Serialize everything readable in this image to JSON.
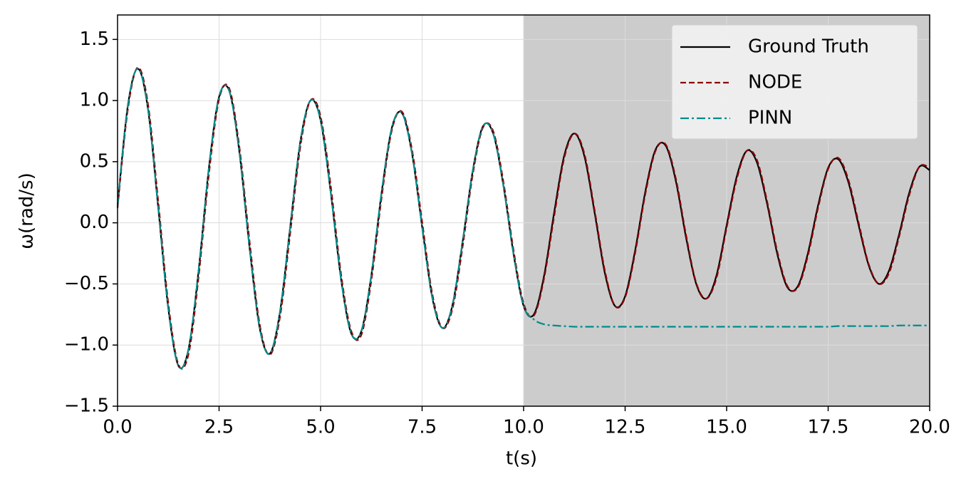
{
  "chart_data": {
    "type": "line",
    "xlabel": "t(s)",
    "ylabel": "ω(rad/s)",
    "xlim": [
      0,
      20
    ],
    "ylim": [
      -1.5,
      1.7
    ],
    "xticks": [
      {
        "value": 0,
        "label": "0.0"
      },
      2.5,
      {
        "value": 5,
        "label": "5.0"
      },
      7.5,
      {
        "value": 10,
        "label": "10.0"
      },
      12.5,
      {
        "value": 15,
        "label": "15.0"
      },
      17.5,
      {
        "value": 20,
        "label": "20.0"
      }
    ],
    "yticks": [
      {
        "value": -1.5,
        "label": "−1.5"
      },
      {
        "value": -1,
        "label": "−1.0"
      },
      {
        "value": -0.5,
        "label": "−0.5"
      },
      {
        "value": 0,
        "label": "0.0"
      },
      0.5,
      {
        "value": 1,
        "label": "1.0"
      },
      1.5
    ],
    "grid": true,
    "legend": "upper right",
    "shaded_xrange": [
      10,
      20
    ],
    "x": [
      0,
      0.25,
      0.5,
      0.75,
      1,
      1.25,
      1.5,
      1.75,
      2,
      2.25,
      2.5,
      2.75,
      3,
      3.25,
      3.5,
      3.75,
      4,
      4.25,
      4.5,
      4.75,
      5,
      5.25,
      5.5,
      5.75,
      6,
      6.25,
      6.5,
      6.75,
      7,
      7.25,
      7.5,
      7.75,
      8,
      8.25,
      8.5,
      8.75,
      9,
      9.25,
      9.5,
      9.75,
      10,
      10.25,
      10.5,
      10.75,
      11,
      11.25,
      11.5,
      11.75,
      12,
      12.25,
      12.5,
      12.75,
      13,
      13.25,
      13.5,
      13.75,
      14,
      14.25,
      14.5,
      14.75,
      15,
      15.25,
      15.5,
      15.75,
      16,
      16.25,
      16.5,
      16.75,
      17,
      17.25,
      17.5,
      17.75,
      18,
      18.25,
      18.5,
      18.75,
      19,
      19.25,
      19.5,
      19.75,
      20
    ],
    "series": [
      {
        "name": "Ground Truth",
        "color": "#000000",
        "dash": "solid",
        "values": [
          0.14,
          0.95,
          1.26,
          0.93,
          0.13,
          -0.7,
          -1.17,
          -1.03,
          -0.38,
          0.45,
          1.03,
          1.08,
          0.58,
          -0.2,
          -0.86,
          -1.07,
          -0.73,
          -0.04,
          0.66,
          1.0,
          0.84,
          0.25,
          -0.45,
          -0.9,
          -0.89,
          -0.43,
          0.24,
          0.77,
          0.9,
          0.57,
          -0.03,
          -0.61,
          -0.86,
          -0.67,
          -0.15,
          0.43,
          0.79,
          0.73,
          0.31,
          -0.25,
          -0.68,
          -0.75,
          -0.44,
          0.08,
          0.55,
          0.73,
          0.54,
          0.08,
          -0.41,
          -0.68,
          -0.6,
          -0.22,
          0.26,
          0.6,
          0.63,
          0.34,
          -0.12,
          -0.5,
          -0.62,
          -0.43,
          -0.02,
          0.38,
          0.59,
          0.49,
          0.15,
          -0.26,
          -0.53,
          -0.52,
          -0.25,
          0.14,
          0.45,
          0.52,
          0.33,
          -0.02,
          -0.35,
          -0.5,
          -0.39,
          -0.09,
          0.25,
          0.46,
          0.43
        ]
      },
      {
        "name": "NODE",
        "color": "#8b0000",
        "dash": "dashed",
        "values": [
          0.12,
          0.92,
          1.27,
          0.97,
          0.18,
          -0.66,
          -1.16,
          -1.07,
          -0.43,
          0.4,
          1.01,
          1.1,
          0.62,
          -0.15,
          -0.83,
          -1.08,
          -0.77,
          -0.09,
          0.62,
          1.0,
          0.87,
          0.3,
          -0.41,
          -0.88,
          -0.92,
          -0.47,
          0.2,
          0.75,
          0.91,
          0.6,
          0.01,
          -0.58,
          -0.86,
          -0.7,
          -0.19,
          0.4,
          0.78,
          0.75,
          0.34,
          -0.22,
          -0.66,
          -0.76,
          -0.46,
          0.05,
          0.53,
          0.73,
          0.56,
          0.1,
          -0.39,
          -0.68,
          -0.61,
          -0.24,
          0.24,
          0.59,
          0.64,
          0.36,
          -0.1,
          -0.49,
          -0.62,
          -0.45,
          -0.04,
          0.36,
          0.59,
          0.51,
          0.17,
          -0.24,
          -0.52,
          -0.53,
          -0.27,
          0.12,
          0.44,
          0.53,
          0.35,
          0.0,
          -0.34,
          -0.5,
          -0.41,
          -0.11,
          0.23,
          0.46,
          0.45
        ]
      },
      {
        "name": "PINN",
        "color": "#008b8b",
        "dash": "dashdot",
        "values": [
          0.14,
          0.95,
          1.26,
          0.93,
          0.13,
          -0.7,
          -1.17,
          -1.03,
          -0.38,
          0.45,
          1.03,
          1.08,
          0.58,
          -0.2,
          -0.86,
          -1.07,
          -0.73,
          -0.04,
          0.66,
          1.0,
          0.84,
          0.25,
          -0.45,
          -0.9,
          -0.89,
          -0.43,
          0.24,
          0.77,
          0.9,
          0.57,
          -0.03,
          -0.61,
          -0.86,
          -0.67,
          -0.15,
          0.43,
          0.79,
          0.73,
          0.31,
          -0.25,
          -0.68,
          -0.79,
          -0.83,
          -0.84,
          -0.845,
          -0.85,
          -0.85,
          -0.85,
          -0.85,
          -0.85,
          -0.85,
          -0.85,
          -0.85,
          -0.85,
          -0.85,
          -0.85,
          -0.85,
          -0.85,
          -0.85,
          -0.85,
          -0.85,
          -0.85,
          -0.85,
          -0.85,
          -0.85,
          -0.85,
          -0.85,
          -0.85,
          -0.85,
          -0.85,
          -0.85,
          -0.845,
          -0.845,
          -0.845,
          -0.845,
          -0.845,
          -0.845,
          -0.84,
          -0.84,
          -0.84,
          -0.84
        ]
      }
    ]
  }
}
